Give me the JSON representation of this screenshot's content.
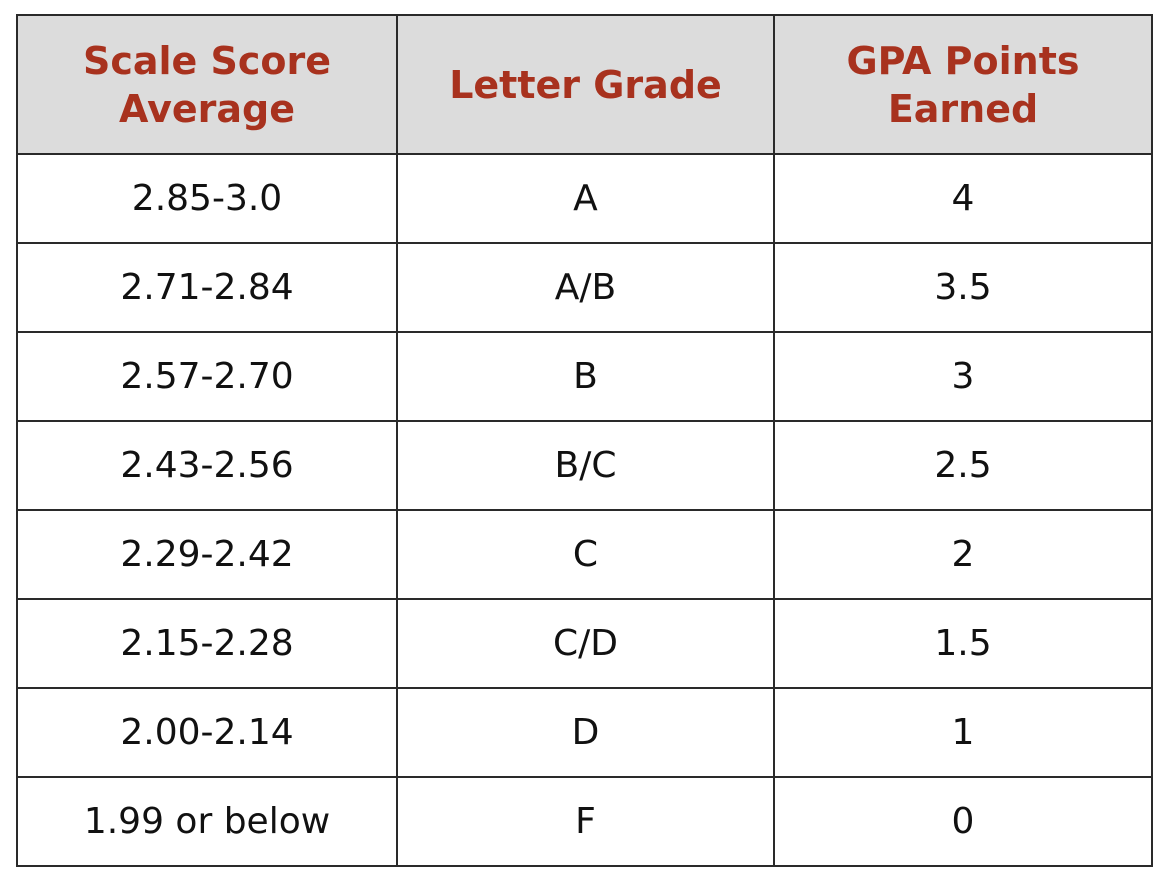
{
  "table": {
    "headers": [
      {
        "line1": "Scale Score",
        "line2": "Average"
      },
      {
        "line1": "Letter Grade",
        "line2": ""
      },
      {
        "line1": "GPA Points",
        "line2": "Earned"
      }
    ],
    "rows": [
      {
        "score": "2.85-3.0",
        "grade": "A",
        "points": "4"
      },
      {
        "score": "2.71-2.84",
        "grade": "A/B",
        "points": "3.5"
      },
      {
        "score": "2.57-2.70",
        "grade": "B",
        "points": "3"
      },
      {
        "score": "2.43-2.56",
        "grade": "B/C",
        "points": "2.5"
      },
      {
        "score": "2.29-2.42",
        "grade": "C",
        "points": "2"
      },
      {
        "score": "2.15-2.28",
        "grade": "C/D",
        "points": "1.5"
      },
      {
        "score": "2.00-2.14",
        "grade": "D",
        "points": "1"
      },
      {
        "score": "1.99 or below",
        "grade": "F",
        "points": "0"
      }
    ]
  },
  "colors": {
    "header_text": "#a8321e",
    "header_background": "#dcdcdc",
    "border": "#2a2a2a",
    "cell_text": "#111111"
  }
}
